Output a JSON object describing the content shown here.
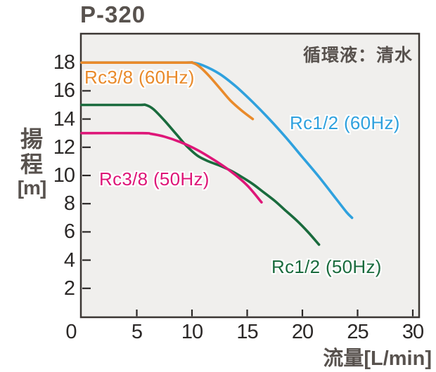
{
  "page": {
    "title": "P-320",
    "background": "#FFFFFF"
  },
  "colors": {
    "heading_text": "#58524E",
    "tick_text": "#2B2827",
    "plot_background": "#F0EFED",
    "plot_border": "#3B3633",
    "series_orange": "#E98A2A",
    "series_blue": "#2FA1DE",
    "series_green": "#1A6B3D",
    "series_magenta": "#DE1678"
  },
  "chart_data": {
    "type": "line",
    "title": "P-320",
    "xlabel": "流量[L/min]",
    "ylabel": "揚程[m]",
    "ylabel_stack": [
      "揚",
      "程",
      "[m]"
    ],
    "annotation": "循環液：清水",
    "xlim": [
      0,
      30.6
    ],
    "ylim": [
      0,
      20
    ],
    "xticks": [
      0,
      5,
      10,
      15,
      20,
      25,
      30
    ],
    "yticks": [
      2,
      4,
      6,
      8,
      10,
      12,
      14,
      16,
      18
    ],
    "grid": false,
    "legend_position": "inline-curve-labels",
    "series": [
      {
        "name": "Rc1/2 (60Hz)",
        "color": "#2FA1DE",
        "points": [
          [
            0,
            18
          ],
          [
            9,
            18
          ],
          [
            10,
            18
          ],
          [
            11,
            17.8
          ],
          [
            12.5,
            17.2
          ],
          [
            14,
            16.3
          ],
          [
            15.5,
            15.2
          ],
          [
            17,
            14
          ],
          [
            18.5,
            12.7
          ],
          [
            20,
            11.3
          ],
          [
            21.5,
            9.9
          ],
          [
            23,
            8.4
          ],
          [
            24,
            7.4
          ],
          [
            24.5,
            7
          ]
        ]
      },
      {
        "name": "Rc3/8 (60Hz)",
        "color": "#E98A2A",
        "points": [
          [
            0,
            18
          ],
          [
            9,
            18
          ],
          [
            10,
            18
          ],
          [
            10.7,
            17.7
          ],
          [
            11.5,
            17.1
          ],
          [
            12.5,
            16.2
          ],
          [
            13.5,
            15.3
          ],
          [
            14.5,
            14.6
          ],
          [
            15.5,
            14
          ]
        ]
      },
      {
        "name": "Rc1/2 (50Hz)",
        "color": "#1A6B3D",
        "points": [
          [
            0,
            15
          ],
          [
            5,
            15
          ],
          [
            5.8,
            15
          ],
          [
            6.5,
            14.7
          ],
          [
            7.5,
            13.9
          ],
          [
            8.5,
            13
          ],
          [
            9.5,
            12.1
          ],
          [
            10.5,
            11.4
          ],
          [
            11.5,
            11
          ],
          [
            12.5,
            10.7
          ],
          [
            13.5,
            10.35
          ],
          [
            14.5,
            9.9
          ],
          [
            15.5,
            9.4
          ],
          [
            16.5,
            8.8
          ],
          [
            17.5,
            8.2
          ],
          [
            18.5,
            7.5
          ],
          [
            19.5,
            6.8
          ],
          [
            20.5,
            6
          ],
          [
            21.5,
            5.1
          ]
        ]
      },
      {
        "name": "Rc3/8 (50Hz)",
        "color": "#DE1678",
        "points": [
          [
            0,
            13
          ],
          [
            5.5,
            13
          ],
          [
            6.3,
            12.95
          ],
          [
            7.5,
            12.75
          ],
          [
            9,
            12.35
          ],
          [
            10.5,
            11.8
          ],
          [
            12,
            11.1
          ],
          [
            13.5,
            10.3
          ],
          [
            15,
            9.3
          ],
          [
            16.3,
            8.1
          ]
        ]
      }
    ]
  }
}
